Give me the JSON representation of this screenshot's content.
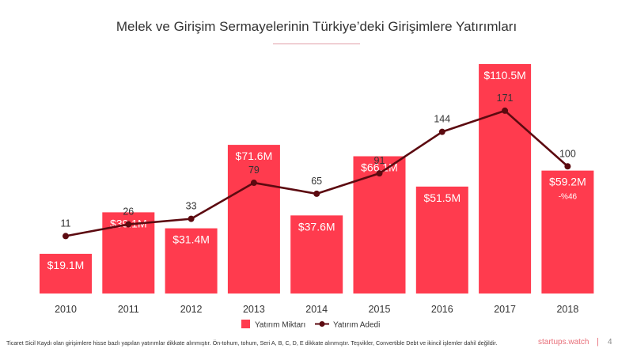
{
  "slide": {
    "title": "Melek ve Girişim Sermayelerinin Türkiye’deki Girişimlere Yatırımları",
    "footnote": "Ticaret Sicil Kaydı olan girişimlere hisse bazlı yapılan yatırımlar dikkate alınmıştır. Ön-tohum, tohum, Seri A, B, C, D, E dikkate alınmıştır. Teşvikler, Convertible Debt ve ikincil işlemler dahil değildir.",
    "brand": "startups.watch",
    "separator": "|",
    "page_number": "4"
  },
  "colors": {
    "bar": "#ff3b4e",
    "line": "#5c0a10",
    "bar_label": "#ffffff",
    "count_label": "#333333",
    "axis_label": "#333333",
    "annotation": "#ffffff"
  },
  "chart_data": {
    "type": "bar",
    "categories": [
      "2010",
      "2011",
      "2012",
      "2013",
      "2014",
      "2015",
      "2016",
      "2017",
      "2018"
    ],
    "series": [
      {
        "name": "Yatırım Miktarı",
        "type": "bar",
        "values": [
          19.1,
          39.1,
          31.4,
          71.6,
          37.6,
          66.1,
          51.5,
          110.5,
          59.2
        ],
        "labels": [
          "$19.1M",
          "$39.1M",
          "$31.4M",
          "$71.6M",
          "$37.6M",
          "$66.1M",
          "$51.5M",
          "$110.5M",
          "$59.2M"
        ]
      },
      {
        "name": "Yatırım Adedi",
        "type": "line",
        "values": [
          11,
          26,
          33,
          79,
          65,
          91,
          144,
          171,
          100
        ],
        "labels": [
          "11",
          "26",
          "33",
          "79",
          "65",
          "91",
          "144",
          "171",
          "100"
        ]
      }
    ],
    "annotations": [
      {
        "category": "2018",
        "text": "-%46"
      }
    ],
    "legend": {
      "position": "bottom-center",
      "entries": [
        "Yatırım Miktarı",
        "Yatırım Adedi"
      ]
    },
    "grid": false
  }
}
